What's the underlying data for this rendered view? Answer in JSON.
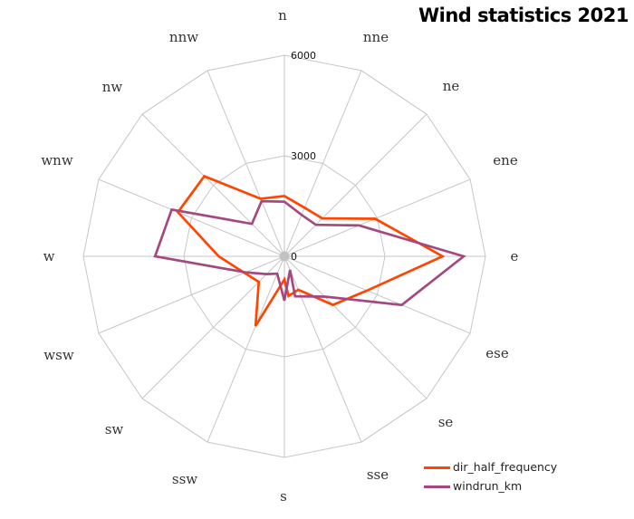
{
  "title": "Wind statistics 2021",
  "legend": {
    "items": [
      {
        "label": "dir_half_frequency",
        "color": "#FF4500"
      },
      {
        "label": "windrun_km",
        "color": "#A34980"
      }
    ]
  },
  "chart_data": {
    "type": "radar",
    "title": "Wind statistics 2021",
    "directions": [
      "n",
      "nne",
      "ne",
      "ene",
      "e",
      "ese",
      "se",
      "sse",
      "s",
      "ssw",
      "sw",
      "wsw",
      "w",
      "wnw",
      "nw",
      "nnw"
    ],
    "radial_ticks": [
      0,
      3000,
      6000
    ],
    "radial_range": [
      0,
      6000
    ],
    "grid_color": "#C6C6C6",
    "center_dot_color": "#C2C2C2",
    "legend_position": "bottom-right",
    "series": [
      {
        "name": "dir_half_frequency",
        "color": "#FF4500",
        "values": [
          1800,
          1570,
          1600,
          2930,
          4720,
          2670,
          2050,
          1080,
          690,
          2250,
          1080,
          1290,
          1960,
          3440,
          3380,
          1860
        ],
        "extra_points": [
          {
            "after_index": 7,
            "bearing_deg": 174,
            "value": 1190
          }
        ]
      },
      {
        "name": "windrun_km",
        "color": "#A34980",
        "values": [
          1630,
          1340,
          1330,
          2410,
          5350,
          3790,
          1700,
          440,
          1320,
          560,
          750,
          1250,
          3860,
          3640,
          1370,
          1780
        ],
        "extra_points": [
          {
            "after_index": 6,
            "bearing_deg": 165,
            "value": 1235
          }
        ]
      }
    ]
  }
}
